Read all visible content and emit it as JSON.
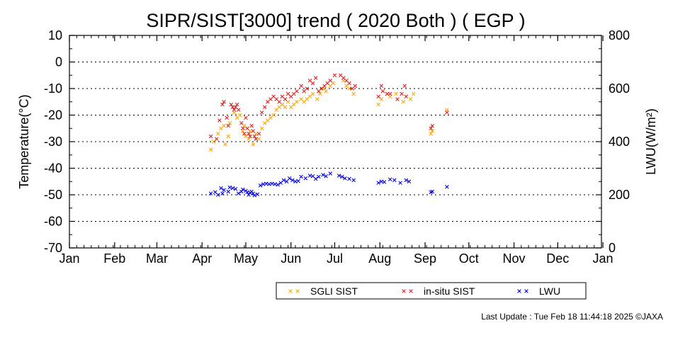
{
  "chart_data": {
    "type": "scatter",
    "title": "SIPR/SIST[3000] trend ( 2020 Both ) ( EGP )",
    "ylabel": "Temperature(°C)",
    "y2label": "LWU(W/m²)",
    "xlabel": "",
    "x_range_doy": [
      1,
      366
    ],
    "months": [
      "Jan",
      "Feb",
      "Mar",
      "Apr",
      "May",
      "Jun",
      "Jul",
      "Aug",
      "Sep",
      "Oct",
      "Nov",
      "Dec",
      "Jan"
    ],
    "month_start_doy": [
      1,
      32,
      61,
      92,
      122,
      153,
      183,
      214,
      245,
      275,
      306,
      336,
      367
    ],
    "ylim": [
      -70,
      10
    ],
    "yticks": [
      10,
      0,
      -10,
      -20,
      -30,
      -40,
      -50,
      -60,
      -70
    ],
    "y2lim": [
      0,
      800
    ],
    "y2ticks": [
      800,
      600,
      400,
      200,
      0
    ],
    "grid_dotted_at": [
      0,
      -10,
      -20,
      -30,
      -40,
      -50,
      -60
    ],
    "legend_position": "bottom-right",
    "series": [
      {
        "name": "SGLI SIST",
        "axis": "left",
        "color": "#FFA500",
        "points": [
          [
            98,
            -33
          ],
          [
            100,
            -30
          ],
          [
            103,
            -27
          ],
          [
            105,
            -25
          ],
          [
            107,
            -24
          ],
          [
            108,
            -31
          ],
          [
            110,
            -28
          ],
          [
            111,
            -23
          ],
          [
            114,
            -19
          ],
          [
            116,
            -21
          ],
          [
            118,
            -20
          ],
          [
            120,
            -26
          ],
          [
            121,
            -24
          ],
          [
            122,
            -28
          ],
          [
            124,
            -29
          ],
          [
            125,
            -26
          ],
          [
            127,
            -31
          ],
          [
            129,
            -27
          ],
          [
            131,
            -29
          ],
          [
            133,
            -25
          ],
          [
            135,
            -23
          ],
          [
            137,
            -22
          ],
          [
            139,
            -21
          ],
          [
            141,
            -20
          ],
          [
            143,
            -18
          ],
          [
            145,
            -17
          ],
          [
            147,
            -16
          ],
          [
            149,
            -17
          ],
          [
            151,
            -15
          ],
          [
            153,
            -17
          ],
          [
            155,
            -16
          ],
          [
            157,
            -15
          ],
          [
            160,
            -14
          ],
          [
            162,
            -15
          ],
          [
            164,
            -14
          ],
          [
            166,
            -13
          ],
          [
            168,
            -12
          ],
          [
            171,
            -14
          ],
          [
            173,
            -12
          ],
          [
            175,
            -10
          ],
          [
            177,
            -11
          ],
          [
            180,
            -9
          ],
          [
            182,
            -8
          ],
          [
            189,
            -7
          ],
          [
            191,
            -9
          ],
          [
            193,
            -10
          ],
          [
            196,
            -12
          ],
          [
            213,
            -16
          ],
          [
            215,
            -14
          ],
          [
            219,
            -12
          ],
          [
            221,
            -13
          ],
          [
            225,
            -12
          ],
          [
            230,
            -15
          ],
          [
            235,
            -14
          ],
          [
            237,
            -12
          ],
          [
            249,
            -27
          ],
          [
            250,
            -26
          ],
          [
            260,
            -18
          ]
        ]
      },
      {
        "name": "in-situ SIST",
        "axis": "left",
        "color": "#E0201E",
        "points": [
          [
            98,
            -28
          ],
          [
            102,
            -29
          ],
          [
            104,
            -22
          ],
          [
            106,
            -16
          ],
          [
            107,
            -15
          ],
          [
            109,
            -21
          ],
          [
            110,
            -24
          ],
          [
            112,
            -16
          ],
          [
            113,
            -17
          ],
          [
            114,
            -18
          ],
          [
            115,
            -17
          ],
          [
            116,
            -16
          ],
          [
            117,
            -18
          ],
          [
            119,
            -23
          ],
          [
            120,
            -25
          ],
          [
            121,
            -27
          ],
          [
            122,
            -21
          ],
          [
            123,
            -25
          ],
          [
            124,
            -27
          ],
          [
            125,
            -28
          ],
          [
            126,
            -24
          ],
          [
            127,
            -26
          ],
          [
            128,
            -28
          ],
          [
            129,
            -29
          ],
          [
            131,
            -27
          ],
          [
            133,
            -19
          ],
          [
            135,
            -17
          ],
          [
            137,
            -15
          ],
          [
            139,
            -14
          ],
          [
            141,
            -13
          ],
          [
            143,
            -14
          ],
          [
            145,
            -15
          ],
          [
            147,
            -13
          ],
          [
            149,
            -14
          ],
          [
            151,
            -12
          ],
          [
            153,
            -13
          ],
          [
            155,
            -12
          ],
          [
            157,
            -11
          ],
          [
            160,
            -9
          ],
          [
            162,
            -11
          ],
          [
            164,
            -10
          ],
          [
            166,
            -7
          ],
          [
            168,
            -8
          ],
          [
            170,
            -6
          ],
          [
            172,
            -11
          ],
          [
            174,
            -10
          ],
          [
            176,
            -9
          ],
          [
            178,
            -8
          ],
          [
            180,
            -7
          ],
          [
            183,
            -5
          ],
          [
            187,
            -5
          ],
          [
            189,
            -6
          ],
          [
            191,
            -7
          ],
          [
            193,
            -8
          ],
          [
            195,
            -10
          ],
          [
            197,
            -9
          ],
          [
            213,
            -13
          ],
          [
            215,
            -9
          ],
          [
            216,
            -11
          ],
          [
            219,
            -12
          ],
          [
            221,
            -12
          ],
          [
            226,
            -14
          ],
          [
            229,
            -12
          ],
          [
            231,
            -9
          ],
          [
            232,
            -13
          ],
          [
            249,
            -25
          ],
          [
            250,
            -24
          ],
          [
            260,
            -19
          ]
        ]
      },
      {
        "name": "LWU",
        "axis": "right",
        "color": "#0000E0",
        "points": [
          [
            98,
            205
          ],
          [
            101,
            210
          ],
          [
            103,
            200
          ],
          [
            105,
            225
          ],
          [
            106,
            205
          ],
          [
            107,
            218
          ],
          [
            110,
            212
          ],
          [
            111,
            228
          ],
          [
            113,
            225
          ],
          [
            115,
            222
          ],
          [
            117,
            205
          ],
          [
            119,
            212
          ],
          [
            120,
            220
          ],
          [
            122,
            215
          ],
          [
            123,
            210
          ],
          [
            124,
            200
          ],
          [
            125,
            208
          ],
          [
            126,
            212
          ],
          [
            127,
            205
          ],
          [
            128,
            198
          ],
          [
            130,
            202
          ],
          [
            132,
            235
          ],
          [
            134,
            240
          ],
          [
            136,
            242
          ],
          [
            138,
            240
          ],
          [
            140,
            242
          ],
          [
            142,
            240
          ],
          [
            144,
            238
          ],
          [
            146,
            245
          ],
          [
            148,
            255
          ],
          [
            150,
            250
          ],
          [
            152,
            262
          ],
          [
            154,
            255
          ],
          [
            156,
            250
          ],
          [
            158,
            252
          ],
          [
            160,
            268
          ],
          [
            163,
            262
          ],
          [
            166,
            272
          ],
          [
            168,
            270
          ],
          [
            170,
            260
          ],
          [
            172,
            268
          ],
          [
            175,
            275
          ],
          [
            177,
            270
          ],
          [
            180,
            280
          ],
          [
            186,
            272
          ],
          [
            188,
            268
          ],
          [
            190,
            262
          ],
          [
            193,
            260
          ],
          [
            196,
            255
          ],
          [
            213,
            245
          ],
          [
            215,
            250
          ],
          [
            217,
            248
          ],
          [
            221,
            258
          ],
          [
            224,
            255
          ],
          [
            228,
            245
          ],
          [
            232,
            255
          ],
          [
            234,
            250
          ],
          [
            249,
            210
          ],
          [
            250,
            212
          ],
          [
            260,
            230
          ]
        ]
      }
    ],
    "footer": "Last Update : Tue Feb 18 11:44:18 2025  ©JAXA"
  }
}
